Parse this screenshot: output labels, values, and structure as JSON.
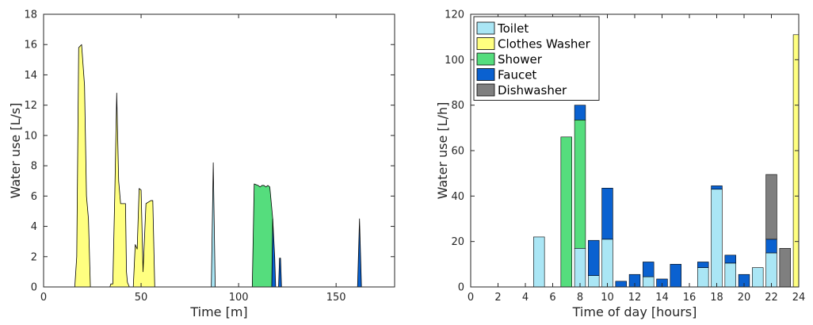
{
  "chart_data": [
    {
      "type": "area",
      "xlabel": "Time [m]",
      "ylabel": "Water use [L/s]",
      "xlim": [
        0,
        180
      ],
      "ylim": [
        0,
        18
      ],
      "xticks": [
        0,
        50,
        100,
        150
      ],
      "yticks": [
        0,
        2,
        4,
        6,
        8,
        10,
        12,
        14,
        16,
        18
      ],
      "grid": false,
      "series": [
        {
          "color": "#ffff80",
          "points": [
            [
              16,
              0
            ],
            [
              17,
              2
            ],
            [
              18,
              15.8
            ],
            [
              19.5,
              16
            ],
            [
              21,
              13.3
            ],
            [
              22,
              6
            ],
            [
              23,
              4.5
            ],
            [
              24,
              0
            ]
          ]
        },
        {
          "color": "#ffff80",
          "points": [
            [
              34,
              0
            ],
            [
              34.5,
              0.2
            ],
            [
              35.5,
              0.2
            ],
            [
              36.5,
              6
            ],
            [
              37.5,
              12.8
            ],
            [
              38.5,
              7
            ],
            [
              39.5,
              5.5
            ],
            [
              42,
              5.5
            ],
            [
              42.5,
              1
            ],
            [
              43,
              0.3
            ],
            [
              44,
              0
            ]
          ]
        },
        {
          "color": "#ffff80",
          "points": [
            [
              46,
              0
            ],
            [
              47,
              2.8
            ],
            [
              48,
              2.5
            ],
            [
              49,
              6.5
            ],
            [
              50,
              6.4
            ],
            [
              51,
              1
            ],
            [
              52.5,
              5.5
            ],
            [
              55,
              5.7
            ],
            [
              56,
              5.7
            ],
            [
              57,
              0
            ]
          ]
        },
        {
          "color": "#aae6f5",
          "points": [
            [
              86,
              0
            ],
            [
              87,
              8.2
            ],
            [
              88,
              0
            ]
          ]
        },
        {
          "color": "#55dd7d",
          "points": [
            [
              107,
              0
            ],
            [
              108,
              6.8
            ],
            [
              110,
              6.7
            ],
            [
              111,
              6.6
            ],
            [
              112,
              6.7
            ],
            [
              113,
              6.7
            ],
            [
              114,
              6.6
            ],
            [
              115,
              6.7
            ],
            [
              116,
              6.6
            ],
            [
              117.5,
              4.5
            ],
            [
              118,
              0
            ]
          ]
        },
        {
          "color": "#0a61d0",
          "points": [
            [
              117,
              0
            ],
            [
              117.5,
              4.5
            ],
            [
              118.5,
              2
            ],
            [
              119,
              0
            ]
          ]
        },
        {
          "color": "#0a61d0",
          "points": [
            [
              120.5,
              0
            ],
            [
              121,
              1.9
            ],
            [
              121.5,
              1.9
            ],
            [
              122,
              0
            ]
          ]
        },
        {
          "color": "#0a61d0",
          "points": [
            [
              161,
              0
            ],
            [
              162,
              4.5
            ],
            [
              163,
              0
            ]
          ]
        }
      ]
    },
    {
      "type": "bar",
      "stacked": true,
      "xlabel": "Time of day [hours]",
      "ylabel": "Water use [L/h]",
      "xlim": [
        0,
        24
      ],
      "ylim": [
        0,
        120
      ],
      "xticks": [
        0,
        2,
        4,
        6,
        8,
        10,
        12,
        14,
        16,
        18,
        20,
        22,
        24
      ],
      "yticks": [
        0,
        20,
        40,
        60,
        80,
        100,
        120
      ],
      "grid": false,
      "legend_position": "top-left",
      "x": [
        5,
        7,
        8,
        9,
        10,
        11,
        12,
        13,
        14,
        15,
        17,
        18,
        19,
        20,
        21,
        22,
        23,
        24
      ],
      "series": [
        {
          "name": "Toilet",
          "color": "#aae6f5",
          "values": [
            22,
            0,
            17,
            5,
            21,
            0,
            0,
            4.5,
            0,
            0,
            8.5,
            43,
            10.5,
            0,
            8.5,
            15,
            0,
            0
          ]
        },
        {
          "name": "Clothes Washer",
          "color": "#ffff80",
          "values": [
            0,
            0,
            0,
            0,
            0,
            0,
            0,
            0,
            0,
            0,
            0,
            0,
            0,
            0,
            0,
            0,
            0,
            111
          ]
        },
        {
          "name": "Shower",
          "color": "#55dd7d",
          "values": [
            0,
            66,
            56.5,
            0,
            0,
            0,
            0,
            0,
            0,
            0,
            0,
            0,
            0,
            0,
            0,
            0,
            0,
            0
          ]
        },
        {
          "name": "Faucet",
          "color": "#0a61d0",
          "values": [
            0,
            0,
            6.5,
            15.5,
            22.5,
            2.5,
            5.5,
            6.5,
            3.5,
            10,
            2.5,
            1.5,
            3.5,
            5.5,
            0,
            6,
            0,
            0
          ]
        },
        {
          "name": "Dishwasher",
          "color": "#7f7f7f",
          "values": [
            0,
            0,
            0,
            0,
            0,
            0,
            0,
            0,
            0,
            0,
            0,
            0,
            0,
            0,
            0,
            28.5,
            17,
            0
          ]
        }
      ]
    }
  ]
}
